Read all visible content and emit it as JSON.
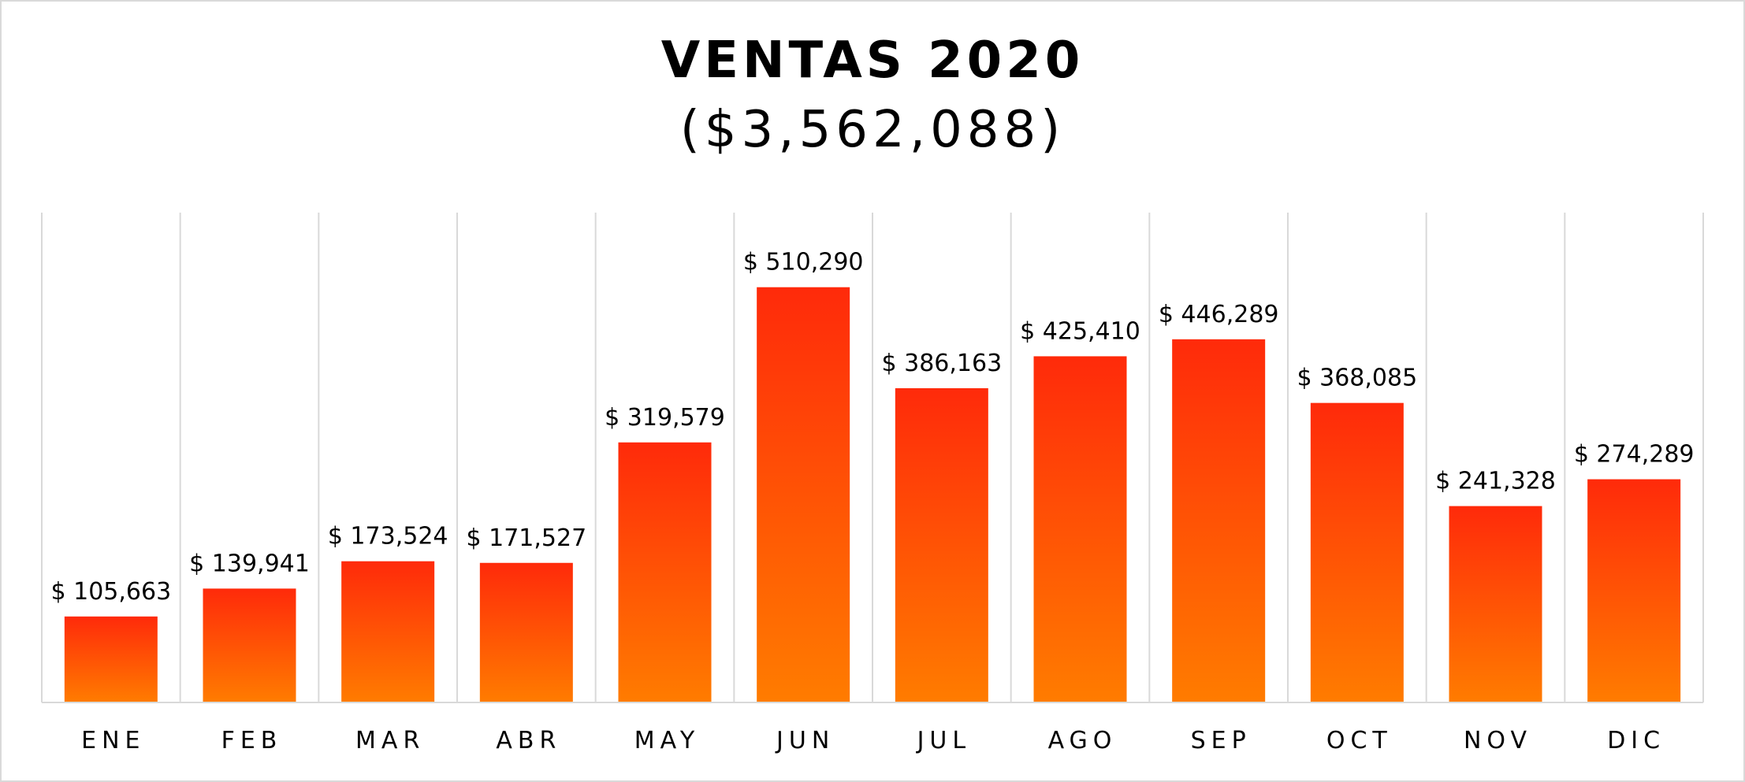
{
  "chart_data": {
    "type": "bar",
    "title": "VENTAS 2020",
    "subtitle": "($3,562,088)",
    "categories": [
      "ENE",
      "FEB",
      "MAR",
      "ABR",
      "MAY",
      "JUN",
      "JUL",
      "AGO",
      "SEP",
      "OCT",
      "NOV",
      "DIC"
    ],
    "values": [
      105663,
      139941,
      173524,
      171527,
      319579,
      510290,
      386163,
      425410,
      446289,
      368085,
      241328,
      274289
    ],
    "value_labels": [
      "$ 105,663",
      "$ 139,941",
      "$ 173,524",
      "$ 171,527",
      "$ 319,579",
      "$ 510,290",
      "$ 386,163",
      "$ 425,410",
      "$ 446,289",
      "$ 368,085",
      "$ 241,328",
      "$ 274,289"
    ],
    "xlabel": "",
    "ylabel": "",
    "ylim": [
      0,
      600000
    ],
    "grid": "vertical",
    "legend": "none",
    "colors": {
      "bar_top": "#ff2a0a",
      "bar_bottom": "#ff7c00",
      "grid": "#d9d9d9",
      "axis": "#d9d9d9"
    }
  }
}
